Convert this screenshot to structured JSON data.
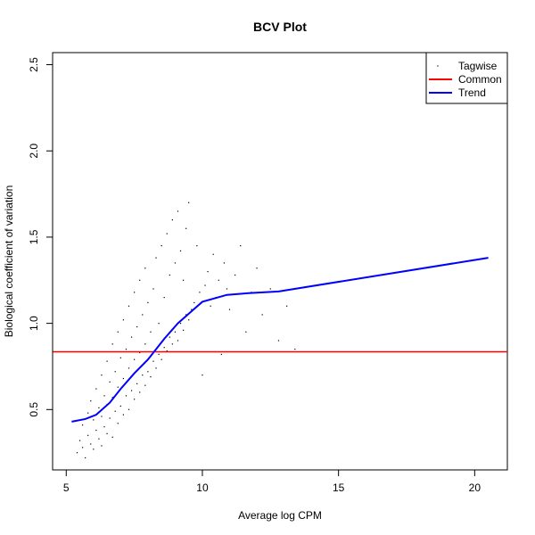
{
  "chart_data": {
    "type": "scatter",
    "title": "BCV Plot",
    "xlabel": "Average log CPM",
    "ylabel": "Biological coefficient of variation",
    "xlim": [
      4.5,
      21.2
    ],
    "ylim": [
      0.15,
      2.57
    ],
    "xticks": [
      "5",
      "10",
      "15",
      "20"
    ],
    "yticks": [
      "0.5",
      "1.0",
      "1.5",
      "2.0",
      "2.5"
    ],
    "legend_position": "top-right",
    "legend": [
      {
        "label": "Tagwise",
        "symbol": "point",
        "color": "#000000"
      },
      {
        "label": "Common",
        "symbol": "line",
        "color": "#ff0000"
      },
      {
        "label": "Trend",
        "symbol": "line",
        "color": "#0000ff"
      }
    ],
    "series": [
      {
        "name": "Tagwise",
        "kind": "points",
        "color": "#000000",
        "x": [
          5.4,
          5.5,
          5.6,
          5.6,
          5.7,
          5.8,
          5.8,
          5.9,
          5.9,
          6.0,
          6.0,
          6.1,
          6.1,
          6.2,
          6.2,
          6.3,
          6.3,
          6.3,
          6.4,
          6.4,
          6.5,
          6.5,
          6.5,
          6.6,
          6.6,
          6.7,
          6.7,
          6.7,
          6.8,
          6.8,
          6.9,
          6.9,
          6.9,
          7.0,
          7.0,
          7.1,
          7.1,
          7.1,
          7.2,
          7.2,
          7.3,
          7.3,
          7.3,
          7.4,
          7.4,
          7.5,
          7.5,
          7.5,
          7.6,
          7.6,
          7.7,
          7.7,
          7.7,
          7.8,
          7.8,
          7.9,
          7.9,
          7.9,
          8.0,
          8.0,
          8.1,
          8.1,
          8.2,
          8.2,
          8.3,
          8.3,
          8.4,
          8.4,
          8.5,
          8.5,
          8.6,
          8.6,
          8.7,
          8.7,
          8.8,
          8.8,
          8.9,
          8.9,
          9.0,
          9.0,
          9.1,
          9.1,
          9.2,
          9.2,
          9.3,
          9.3,
          9.4,
          9.4,
          9.5,
          9.5,
          9.6,
          9.7,
          9.8,
          9.9,
          10.0,
          10.1,
          10.2,
          10.3,
          10.4,
          10.5,
          10.6,
          10.7,
          10.8,
          10.9,
          11.0,
          11.2,
          11.4,
          11.6,
          11.8,
          12.0,
          12.2,
          12.5,
          12.8,
          13.1,
          13.4
        ],
        "y": [
          0.25,
          0.32,
          0.28,
          0.41,
          0.22,
          0.35,
          0.48,
          0.3,
          0.55,
          0.27,
          0.44,
          0.38,
          0.62,
          0.33,
          0.51,
          0.29,
          0.46,
          0.7,
          0.4,
          0.58,
          0.36,
          0.53,
          0.78,
          0.45,
          0.66,
          0.34,
          0.57,
          0.88,
          0.49,
          0.72,
          0.42,
          0.63,
          0.95,
          0.52,
          0.8,
          0.47,
          0.68,
          1.02,
          0.58,
          0.85,
          0.5,
          0.74,
          1.1,
          0.61,
          0.92,
          0.56,
          0.79,
          1.18,
          0.65,
          0.98,
          0.6,
          0.83,
          1.25,
          0.7,
          1.05,
          0.64,
          0.88,
          1.32,
          0.72,
          1.12,
          0.69,
          0.95,
          0.78,
          1.2,
          0.74,
          1.38,
          0.82,
          1.0,
          0.79,
          1.45,
          0.86,
          1.15,
          0.84,
          1.52,
          0.92,
          1.28,
          0.88,
          1.6,
          0.95,
          1.35,
          0.9,
          1.65,
          1.0,
          1.42,
          0.96,
          1.25,
          1.05,
          1.55,
          1.02,
          1.7,
          1.08,
          1.12,
          1.45,
          1.18,
          0.7,
          1.22,
          1.3,
          1.1,
          1.4,
          1.15,
          1.25,
          0.82,
          1.35,
          1.2,
          1.08,
          1.28,
          1.45,
          0.95,
          1.18,
          1.32,
          1.05,
          1.2,
          0.9,
          1.1,
          0.85
        ]
      },
      {
        "name": "Common",
        "kind": "hline",
        "color": "#ff0000",
        "y": 0.835
      },
      {
        "name": "Trend",
        "kind": "line",
        "color": "#0000ff",
        "x": [
          5.2,
          5.7,
          6.1,
          6.6,
          7.0,
          7.5,
          8.0,
          8.6,
          9.1,
          9.6,
          10.0,
          10.9,
          11.7,
          12.8,
          20.5
        ],
        "y": [
          0.43,
          0.445,
          0.47,
          0.54,
          0.62,
          0.71,
          0.79,
          0.91,
          1.0,
          1.07,
          1.125,
          1.165,
          1.175,
          1.185,
          1.38
        ]
      }
    ]
  }
}
